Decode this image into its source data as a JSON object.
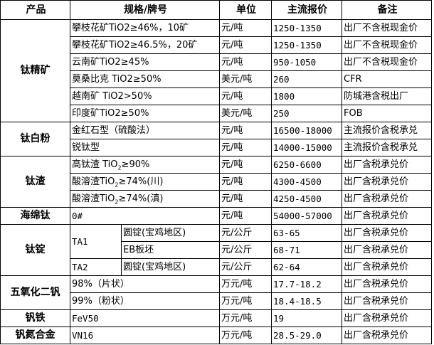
{
  "header": {
    "product": "产品",
    "spec": "规格/牌号",
    "unit": "单位",
    "price": "主流报价",
    "remark": "备注"
  },
  "ti_concentrate": {
    "product": "钛精矿",
    "rows": [
      {
        "spec": "攀枝花矿TiO2≥46%，10矿",
        "unit": "元/吨",
        "price": "1250-1350",
        "remark": "出厂不含税现金价"
      },
      {
        "spec": "攀枝花矿TiO2≥46.5%，20矿",
        "unit": "元/吨",
        "price": "1250-1350",
        "remark": "出厂不含税现金价"
      },
      {
        "spec": "云南矿TiO2≥45%",
        "unit": "元/吨",
        "price": "950-1050",
        "remark": "出厂不含税现金价"
      },
      {
        "spec": "莫桑比克 TiO2≥50%",
        "unit": "美元/吨",
        "price": "260",
        "remark": "CFR"
      },
      {
        "spec": "越南矿 TiO2>50%",
        "unit": "元/吨",
        "price": "1800",
        "remark": "防城港含税出厂"
      },
      {
        "spec": "印度矿TiO2≥50%",
        "unit": "美元/吨",
        "price": "250",
        "remark": "FOB"
      }
    ]
  },
  "ti_dioxide": {
    "product": "钛白粉",
    "rows": [
      {
        "spec": "金红石型（硫酸法）",
        "unit": "元/吨",
        "price": "16500-18000",
        "remark": "主流报价含税承兑"
      },
      {
        "spec": "锐钛型",
        "unit": "元/吨",
        "price": "14000-15000",
        "remark": "主流报价含税承兑"
      }
    ]
  },
  "ti_slag": {
    "product": "钛渣",
    "rows": [
      {
        "prefix": "高钛渣 TiO",
        "sub": "2",
        "suffix": "≥90%",
        "unit": "元/吨",
        "price": "6250-6600",
        "remark": "出厂含税承兑价"
      },
      {
        "prefix": "酸溶渣TiO",
        "sub": "2",
        "suffix": "≥74%(川)",
        "unit": "元/吨",
        "price": "4300-4500",
        "remark": "出厂含税承兑价"
      },
      {
        "prefix": "酸溶渣TiO",
        "sub": "2",
        "suffix": "≥74%(滇)",
        "unit": "元/吨",
        "price": "4250-4500",
        "remark": "出厂含税承兑价"
      }
    ]
  },
  "sponge": {
    "product": "海绵钛",
    "spec": "0#",
    "unit": "元/吨",
    "price": "54000-57000",
    "remark": "出厂含税承兑价"
  },
  "ingot": {
    "product": "钛锭",
    "ta1": "TA1",
    "ta2": "TA2",
    "rows": [
      {
        "spec": "圆锭(宝鸡地区)",
        "unit": "元/公斤",
        "price": "63-65",
        "remark": "出厂含税承兑价"
      },
      {
        "spec": "EB板坯",
        "unit": "元/公斤",
        "price": "68-71",
        "remark": "出厂含税承兑价"
      },
      {
        "spec": "圆锭(宝鸡地区)",
        "unit": "元/公斤",
        "price": "62-64",
        "remark": "出厂含税承兑价"
      }
    ]
  },
  "v2o5": {
    "product": "五氧化二钒",
    "rows": [
      {
        "spec": "98%（片状）",
        "unit": "万元/吨",
        "price": "17.7-18.2",
        "remark": "出厂含税承兑价"
      },
      {
        "spec": "99%（粉状）",
        "unit": "万元/吨",
        "price": "18.4-18.5",
        "remark": "出厂含税承兑价"
      }
    ]
  },
  "fev": {
    "product": "钒铁",
    "spec": "FeV50",
    "unit": "万元/吨",
    "price": "19",
    "remark": "出厂含税承兑价"
  },
  "vn": {
    "product": "钒氮合金",
    "spec": "VN16",
    "unit": "万元/吨",
    "price": "28.5-29.0",
    "remark": "出厂含税承兑价"
  }
}
